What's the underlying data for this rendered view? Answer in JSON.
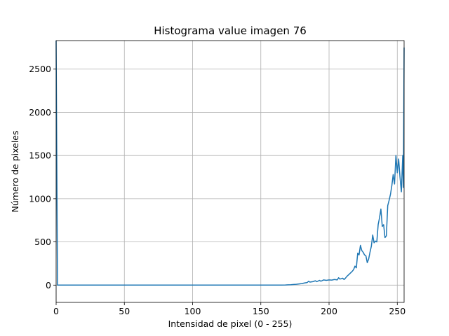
{
  "chart_data": {
    "type": "line",
    "title": "Histograma value imagen 76",
    "xlabel": "Intensidad de pixel (0 - 255)",
    "ylabel": "Número de pixeles",
    "xlim": [
      0,
      255
    ],
    "ylim": [
      -200,
      2830
    ],
    "grid": true,
    "x_ticks": [
      0,
      50,
      100,
      150,
      200,
      250
    ],
    "y_ticks": [
      0,
      500,
      1000,
      1500,
      2000,
      2500
    ],
    "series": [
      {
        "color": "#1f77b4",
        "points": [
          [
            0,
            2830
          ],
          [
            1,
            0
          ],
          [
            100,
            0
          ],
          [
            150,
            0
          ],
          [
            165,
            0
          ],
          [
            168,
            2
          ],
          [
            170,
            4
          ],
          [
            172,
            5
          ],
          [
            174,
            8
          ],
          [
            176,
            10
          ],
          [
            178,
            14
          ],
          [
            180,
            18
          ],
          [
            182,
            25
          ],
          [
            184,
            30
          ],
          [
            185,
            45
          ],
          [
            186,
            35
          ],
          [
            188,
            40
          ],
          [
            190,
            50
          ],
          [
            191,
            40
          ],
          [
            193,
            55
          ],
          [
            194,
            45
          ],
          [
            196,
            60
          ],
          [
            198,
            55
          ],
          [
            200,
            60
          ],
          [
            202,
            58
          ],
          [
            204,
            65
          ],
          [
            206,
            60
          ],
          [
            207,
            85
          ],
          [
            208,
            70
          ],
          [
            210,
            80
          ],
          [
            211,
            65
          ],
          [
            212,
            80
          ],
          [
            213,
            100
          ],
          [
            215,
            130
          ],
          [
            217,
            160
          ],
          [
            218,
            180
          ],
          [
            219,
            220
          ],
          [
            220,
            200
          ],
          [
            221,
            370
          ],
          [
            222,
            350
          ],
          [
            223,
            460
          ],
          [
            224,
            400
          ],
          [
            225,
            380
          ],
          [
            226,
            350
          ],
          [
            227,
            340
          ],
          [
            228,
            260
          ],
          [
            229,
            300
          ],
          [
            230,
            380
          ],
          [
            231,
            450
          ],
          [
            232,
            580
          ],
          [
            233,
            490
          ],
          [
            234,
            510
          ],
          [
            235,
            500
          ],
          [
            236,
            700
          ],
          [
            237,
            780
          ],
          [
            238,
            880
          ],
          [
            239,
            680
          ],
          [
            240,
            700
          ],
          [
            241,
            550
          ],
          [
            242,
            570
          ],
          [
            243,
            920
          ],
          [
            244,
            980
          ],
          [
            245,
            1050
          ],
          [
            246,
            1150
          ],
          [
            247,
            1280
          ],
          [
            248,
            1170
          ],
          [
            249,
            1500
          ],
          [
            250,
            1300
          ],
          [
            251,
            1460
          ],
          [
            252,
            1250
          ],
          [
            253,
            1080
          ],
          [
            254,
            1500
          ],
          [
            254.5,
            1130
          ],
          [
            255,
            2750
          ]
        ]
      }
    ]
  }
}
